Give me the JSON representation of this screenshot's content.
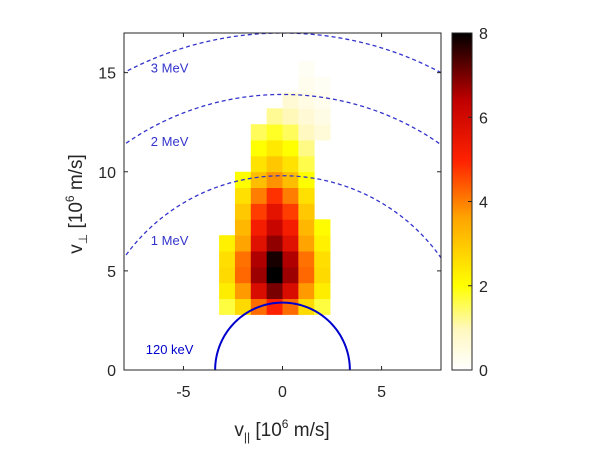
{
  "chart_data": {
    "type": "heatmap",
    "xlabel": {
      "base": "v",
      "sub": "||",
      "rest_before_sup": " [10",
      "sup": "6",
      "rest_after_sup": " m/s]"
    },
    "ylabel": {
      "base": "v",
      "sub": "⊥",
      "rest_before_sup": " [10",
      "sup": "6",
      "rest_after_sup": " m/s]"
    },
    "xlim": [
      -8,
      8
    ],
    "ylim": [
      0,
      17
    ],
    "xticks": [
      -5,
      0,
      5
    ],
    "xtick_labels": [
      "-5",
      "0",
      "5"
    ],
    "yticks": [
      0,
      5,
      10,
      15
    ],
    "ytick_labels": [
      "0",
      "5",
      "10",
      "15"
    ],
    "colorbar": {
      "range": [
        0,
        8
      ],
      "ticks": [
        0,
        2,
        4,
        6,
        8
      ],
      "tick_labels": [
        "0",
        "2",
        "4",
        "6",
        "8"
      ],
      "colormap": "hot (reversed)"
    },
    "grid": false,
    "energy_curves": [
      {
        "label": "3 MeV",
        "speed": 17.0,
        "style": "dashed",
        "color": "#3333cc"
      },
      {
        "label": "2 MeV",
        "speed": 13.9,
        "style": "dashed",
        "color": "#3333cc"
      },
      {
        "label": "1 MeV",
        "speed": 9.8,
        "style": "dashed",
        "color": "#3333cc"
      },
      {
        "label": "120 keV",
        "speed": 3.4,
        "style": "solid",
        "color": "#0000cc"
      }
    ],
    "density_profile": {
      "description": "Distribution of fast-ion velocities concentrated near v_par = 0, between v_perp of about 2.5 and 15",
      "cell_size": [
        0.8,
        0.8
      ],
      "cells": [
        {
          "vperp": [
            2.8,
            3.6
          ],
          "vpar_min": -3.2,
          "vpar_max": 2.4,
          "peak": 5.0
        },
        {
          "vperp": [
            3.6,
            4.4
          ],
          "vpar_min": -3.2,
          "vpar_max": 2.4,
          "peak": 7.0
        },
        {
          "vperp": [
            4.4,
            5.2
          ],
          "vpar_min": -3.2,
          "vpar_max": 2.4,
          "peak": 8.0
        },
        {
          "vperp": [
            5.2,
            6.0
          ],
          "vpar_min": -3.2,
          "vpar_max": 2.4,
          "peak": 7.8
        },
        {
          "vperp": [
            6.0,
            6.8
          ],
          "vpar_min": -3.2,
          "vpar_max": 2.4,
          "peak": 6.8
        },
        {
          "vperp": [
            6.8,
            7.6
          ],
          "vpar_min": -2.4,
          "vpar_max": 2.4,
          "peak": 6.2
        },
        {
          "vperp": [
            7.6,
            8.4
          ],
          "vpar_min": -2.4,
          "vpar_max": 1.6,
          "peak": 5.6
        },
        {
          "vperp": [
            8.4,
            9.2
          ],
          "vpar_min": -2.4,
          "vpar_max": 1.6,
          "peak": 4.8
        },
        {
          "vperp": [
            9.2,
            10.0
          ],
          "vpar_min": -2.4,
          "vpar_max": 1.6,
          "peak": 3.8
        },
        {
          "vperp": [
            10.0,
            10.8
          ],
          "vpar_min": -1.6,
          "vpar_max": 1.6,
          "peak": 3.0
        },
        {
          "vperp": [
            10.8,
            11.6
          ],
          "vpar_min": -1.6,
          "vpar_max": 1.6,
          "peak": 2.4
        },
        {
          "vperp": [
            11.6,
            12.4
          ],
          "vpar_min": -1.6,
          "vpar_max": 2.4,
          "peak": 1.8
        },
        {
          "vperp": [
            12.4,
            13.2
          ],
          "vpar_min": -0.8,
          "vpar_max": 2.4,
          "peak": 1.2
        },
        {
          "vperp": [
            13.2,
            14.0
          ],
          "vpar_min": 0.0,
          "vpar_max": 2.4,
          "peak": 0.8
        },
        {
          "vperp": [
            14.0,
            14.8
          ],
          "vpar_min": 0.8,
          "vpar_max": 2.4,
          "peak": 0.5
        },
        {
          "vperp": [
            14.8,
            15.6
          ],
          "vpar_min": 0.8,
          "vpar_max": 1.6,
          "peak": 0.3
        }
      ]
    }
  }
}
